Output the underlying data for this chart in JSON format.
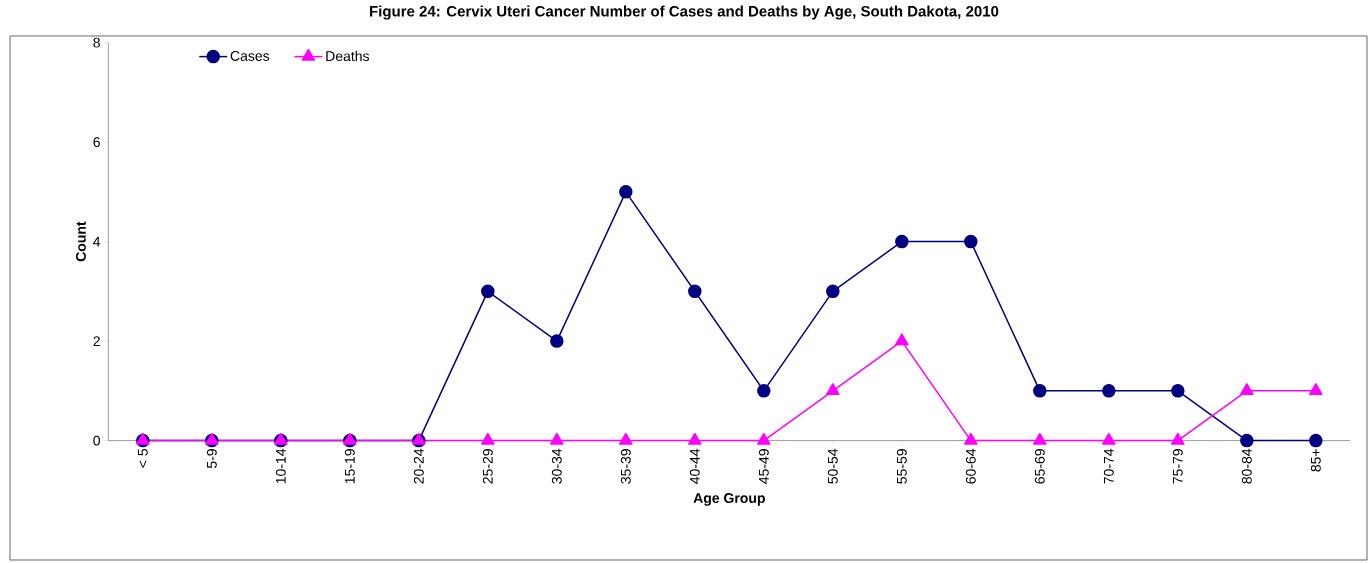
{
  "chart_data": {
    "type": "line",
    "title": "Figure 24: Cervix Uteri Cancer Number of Cases and Deaths by Age, South Dakota, 2010",
    "xlabel": "Age Group",
    "ylabel": "Count",
    "categories": [
      "< 5",
      "5-9",
      "10-14",
      "15-19",
      "20-24",
      "25-29",
      "30-34",
      "35-39",
      "40-44",
      "45-49",
      "50-54",
      "55-59",
      "60-64",
      "65-69",
      "70-74",
      "75-79",
      "80-84",
      "85+"
    ],
    "series": [
      {
        "name": "Cases",
        "color": "#000080",
        "marker": "circle",
        "values": [
          0,
          0,
          0,
          0,
          0,
          3,
          2,
          5,
          3,
          1,
          3,
          4,
          4,
          1,
          1,
          1,
          0,
          0
        ]
      },
      {
        "name": "Deaths",
        "color": "#ff00ff",
        "marker": "triangle",
        "values": [
          0,
          0,
          0,
          0,
          0,
          0,
          0,
          0,
          0,
          0,
          1,
          2,
          0,
          0,
          0,
          0,
          1,
          1
        ]
      }
    ],
    "ylim": [
      0,
      8
    ],
    "yticks": [
      0,
      2,
      4,
      6,
      8
    ],
    "grid": false,
    "legend": "top left"
  }
}
